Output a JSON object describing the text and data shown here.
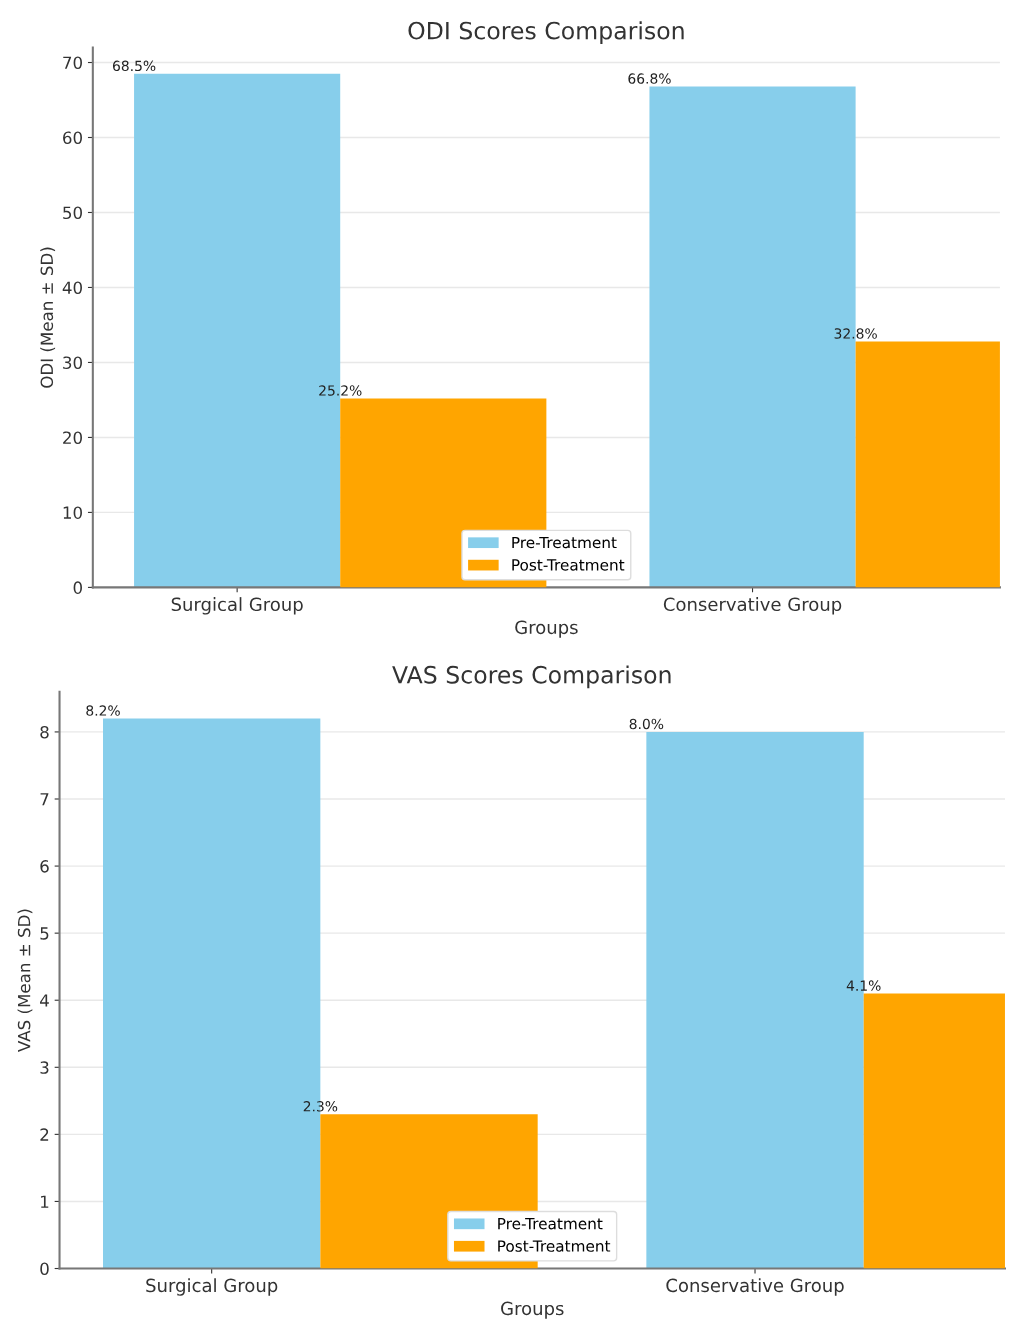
{
  "chart_data": [
    {
      "type": "bar",
      "title": "ODI Scores Comparison",
      "xlabel": "Groups",
      "ylabel": "ODI (Mean ± SD)",
      "categories": [
        "Surgical Group",
        "Conservative Group"
      ],
      "series": [
        {
          "name": "Pre-Treatment",
          "color": "#87ceeb",
          "values": [
            68.5,
            66.8
          ],
          "value_labels": [
            "68.5%",
            "66.8%"
          ]
        },
        {
          "name": "Post-Treatment",
          "color": "#ffa500",
          "values": [
            25.2,
            32.8
          ],
          "value_labels": [
            "25.2%",
            "32.8%"
          ]
        }
      ],
      "ylim": [
        0,
        72
      ],
      "yticks": [
        0,
        10,
        20,
        30,
        40,
        50,
        60,
        70
      ],
      "grid": "y",
      "legend": "bottom"
    },
    {
      "type": "bar",
      "title": "VAS Scores Comparison",
      "xlabel": "Groups",
      "ylabel": "VAS (Mean ± SD)",
      "categories": [
        "Surgical Group",
        "Conservative Group"
      ],
      "series": [
        {
          "name": "Pre-Treatment",
          "color": "#87ceeb",
          "values": [
            8.2,
            8.0
          ],
          "value_labels": [
            "8.2%",
            "8.0%"
          ]
        },
        {
          "name": "Post-Treatment",
          "color": "#ffa500",
          "values": [
            2.3,
            4.1
          ],
          "value_labels": [
            "2.3%",
            "4.1%"
          ]
        }
      ],
      "ylim": [
        0,
        8.6
      ],
      "yticks": [
        0,
        1,
        2,
        3,
        4,
        5,
        6,
        7,
        8
      ],
      "grid": "y",
      "legend": "bottom"
    }
  ]
}
